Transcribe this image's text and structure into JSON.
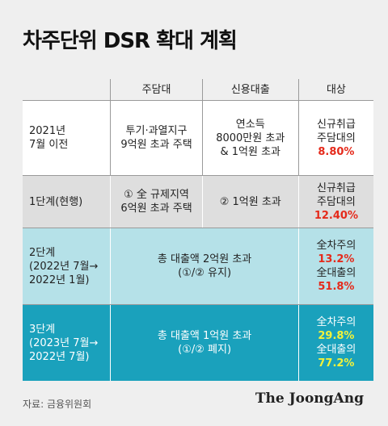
{
  "title": "차주단위 DSR 확대 계획",
  "header": {
    "col_mortgage": "주담대",
    "col_credit": "신용대출",
    "col_target": "대상"
  },
  "rows": [
    {
      "label": [
        "2021년",
        "7월 이전"
      ],
      "mortgage": [
        "투기·과열지구",
        "9억원 초과 주택"
      ],
      "credit": [
        "연소득",
        "8000만원 초과",
        "& 1억원 초과"
      ],
      "target": [
        "신규취급",
        "주담대의"
      ],
      "target_value": "8.80%"
    },
    {
      "label": [
        "1단계(현행)"
      ],
      "mortgage": [
        "① 全 규제지역",
        "6억원 초과 주택"
      ],
      "credit": [
        "② 1억원 초과"
      ],
      "target": [
        "신규취급",
        "주담대의"
      ],
      "target_value": "12.40%"
    },
    {
      "label": [
        "2단계",
        "(2022년 7월→",
        "2022년 1월)"
      ],
      "merged": [
        "총 대출액 2억원 초과",
        "(①/② 유지)"
      ],
      "target1": "全차주의",
      "target1_value": "13.2%",
      "target2": "全대출의",
      "target2_value": "51.8%"
    },
    {
      "label": [
        "3단계",
        "(2023년 7월→",
        "2022년 7월)"
      ],
      "merged": [
        "총 대출액 1억원 초과",
        "(①/② 폐지)"
      ],
      "target1": "全차주의",
      "target1_value": "29.8%",
      "target2": "全대출의",
      "target2_value": "77.2%"
    }
  ],
  "footer": {
    "source": "자료: 금융위원회",
    "logo": "The JoongAng"
  },
  "colors": {
    "background": "#efefef",
    "row0": "#ffffff",
    "row1": "#dedede",
    "row2": "#b5e1e8",
    "row3": "#1aa1bc",
    "highlight_red": "#e52a1b",
    "highlight_yellow": "#f2f23a"
  }
}
